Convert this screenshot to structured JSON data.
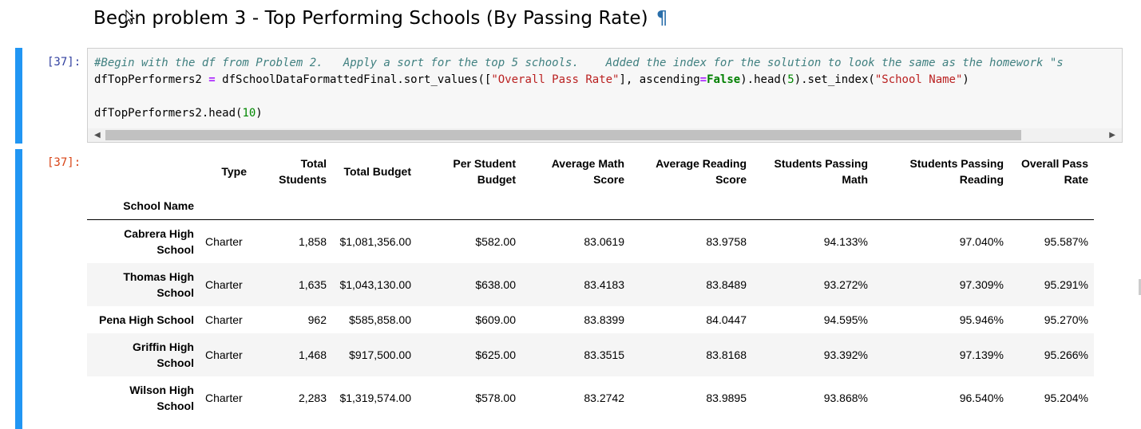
{
  "heading": {
    "title": "Begin problem 3 - Top Performing Schools (By Passing Rate)",
    "anchor": "¶"
  },
  "input_cell": {
    "prompt": "[37]:"
  },
  "output_cell": {
    "prompt": "[37]:"
  },
  "code": {
    "line1_comment": "#Begin with the df from Problem 2.   Apply a sort for the top 5 schools.    Added the index for the solution to look the same as the homework \"s",
    "line2_a": "dfTopPerformers2 ",
    "line2_eq": "=",
    "line2_b": " dfSchoolDataFormattedFinal",
    "line2_c": ".sort_values([",
    "line2_str1": "\"Overall Pass Rate\"",
    "line2_d": "], ascending",
    "line2_eq2": "=",
    "line2_false": "False",
    "line2_e": ").head(",
    "line2_num": "5",
    "line2_f": ").set_index(",
    "line2_str2": "\"School Name\"",
    "line2_g": ")",
    "line4_a": "dfTopPerformers2.head(",
    "line4_num": "10",
    "line4_b": ")"
  },
  "scroll": {
    "left_arrow": "◀",
    "right_arrow": "▶"
  },
  "table": {
    "columns": [
      "Type",
      "Total Students",
      "Total Budget",
      "Per Student Budget",
      "Average Math Score",
      "Average Reading Score",
      "Students Passing Math",
      "Students Passing Reading",
      "Overall Pass Rate"
    ],
    "col_lines": [
      [
        "Type",
        ""
      ],
      [
        "Total",
        "Students"
      ],
      [
        "Total Budget",
        ""
      ],
      [
        "Per Student",
        "Budget"
      ],
      [
        "Average Math",
        "Score"
      ],
      [
        "Average Reading",
        "Score"
      ],
      [
        "Students Passing",
        "Math"
      ],
      [
        "Students Passing",
        "Reading"
      ],
      [
        "Overall Pass",
        "Rate"
      ]
    ],
    "index_name": "School Name",
    "rows": [
      {
        "name1": "Cabrera High",
        "name2": "School",
        "cells": [
          "Charter",
          "1,858",
          "$1,081,356.00",
          "$582.00",
          "83.0619",
          "83.9758",
          "94.133%",
          "97.040%",
          "95.587%"
        ]
      },
      {
        "name1": "Thomas High",
        "name2": "School",
        "cells": [
          "Charter",
          "1,635",
          "$1,043,130.00",
          "$638.00",
          "83.4183",
          "83.8489",
          "93.272%",
          "97.309%",
          "95.291%"
        ]
      },
      {
        "name1": "Pena High School",
        "name2": "",
        "cells": [
          "Charter",
          "962",
          "$585,858.00",
          "$609.00",
          "83.8399",
          "84.0447",
          "94.595%",
          "95.946%",
          "95.270%"
        ]
      },
      {
        "name1": "Griffin High",
        "name2": "School",
        "cells": [
          "Charter",
          "1,468",
          "$917,500.00",
          "$625.00",
          "83.3515",
          "83.8168",
          "93.392%",
          "97.139%",
          "95.266%"
        ]
      },
      {
        "name1": "Wilson High",
        "name2": "School",
        "cells": [
          "Charter",
          "2,283",
          "$1,319,574.00",
          "$578.00",
          "83.2742",
          "83.9895",
          "93.868%",
          "96.540%",
          "95.204%"
        ]
      }
    ]
  }
}
